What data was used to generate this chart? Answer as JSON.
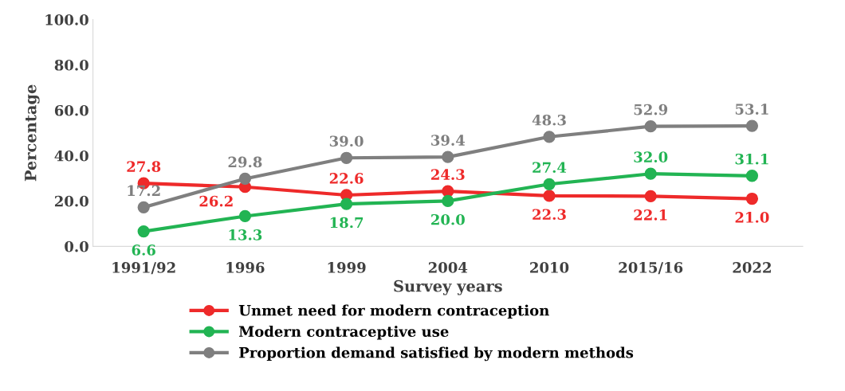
{
  "chart_data": {
    "type": "line",
    "xlabel": "Survey years",
    "ylabel": "Percentage",
    "categories": [
      "1991/92",
      "1996",
      "1999",
      "2004",
      "2010",
      "2015/16",
      "2022"
    ],
    "series": [
      {
        "name": "Unmet need for modern contraception",
        "color": "#ee2a2a",
        "values": [
          27.8,
          26.2,
          22.6,
          24.3,
          22.3,
          22.1,
          21.0
        ],
        "value_labels": [
          "27.8",
          "26.2",
          "22.6",
          "24.3",
          "22.3",
          "22.1",
          "21.0"
        ]
      },
      {
        "name": "Modern contraceptive use",
        "color": "#22b453",
        "values": [
          6.6,
          13.3,
          18.7,
          20.0,
          27.4,
          32.0,
          31.1
        ],
        "value_labels": [
          "6.6",
          "13.3",
          "18.7",
          "20.0",
          "27.4",
          "32.0",
          "31.1"
        ]
      },
      {
        "name": "Proportion demand satisfied by modern methods",
        "color": "#7f7f7f",
        "values": [
          17.2,
          29.8,
          39.0,
          39.4,
          48.3,
          52.9,
          53.1
        ],
        "value_labels": [
          "17.2",
          "29.8",
          "39.0",
          "39.4",
          "48.3",
          "52.9",
          "53.1"
        ]
      }
    ],
    "ylim": [
      0,
      100
    ],
    "yticks": [
      {
        "value": 0,
        "label": "0.0"
      },
      {
        "value": 20,
        "label": "20.0"
      },
      {
        "value": 40,
        "label": "40.0"
      },
      {
        "value": 60,
        "label": "60.0"
      },
      {
        "value": 80,
        "label": "80.0"
      },
      {
        "value": 100,
        "label": "100.0"
      }
    ],
    "marker": "circle",
    "line_style": "solid",
    "legend": "bottom",
    "grid": false
  }
}
